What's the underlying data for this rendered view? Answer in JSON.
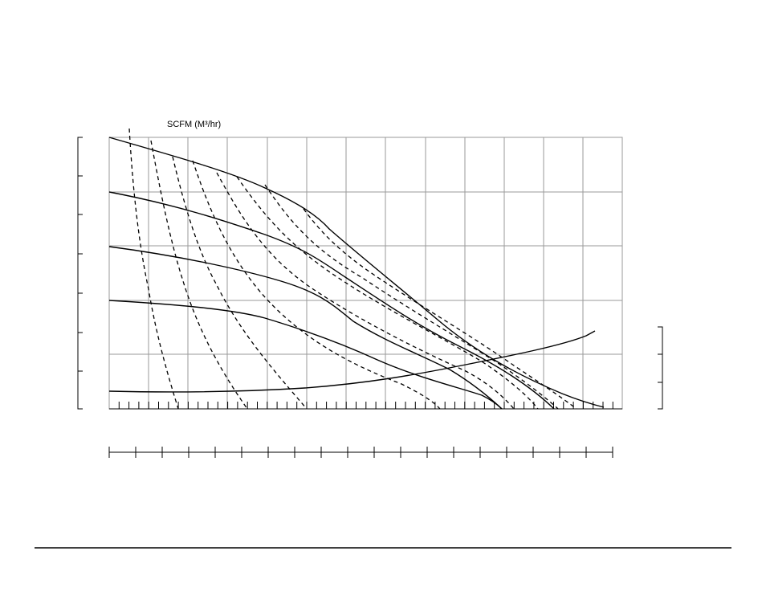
{
  "chart_label": "SCFM (M³/hr)"
}
